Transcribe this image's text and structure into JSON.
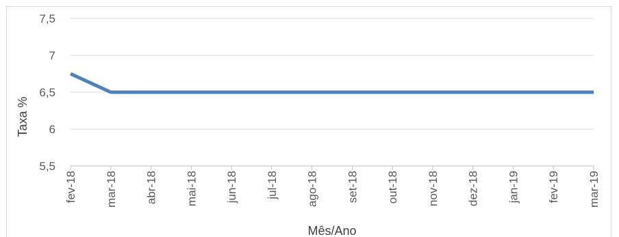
{
  "chart_data": {
    "type": "line",
    "xlabel": "Mês/Ano",
    "ylabel": "Taxa %",
    "ylim": [
      5.5,
      7.5
    ],
    "y_ticks": [
      "7,5",
      "7",
      "6,5",
      "6",
      "5,5"
    ],
    "y_tick_values": [
      7.5,
      7,
      6.5,
      6,
      5.5
    ],
    "categories": [
      "fev-18",
      "mar-18",
      "abr-18",
      "mai-18",
      "jun-18",
      "jul-18",
      "ago-18",
      "set-18",
      "out-18",
      "nov-18",
      "dez-18",
      "jan-19",
      "fev-19",
      "mar-19"
    ],
    "series": [
      {
        "values": [
          6.75,
          6.5,
          6.5,
          6.5,
          6.5,
          6.5,
          6.5,
          6.5,
          6.5,
          6.5,
          6.5,
          6.5,
          6.5,
          6.5
        ]
      }
    ],
    "grid": true,
    "legend": "none",
    "colors": {
      "line": "#4f81bd",
      "grid": "#d9d9d9",
      "axis": "#bfbfbf"
    }
  }
}
